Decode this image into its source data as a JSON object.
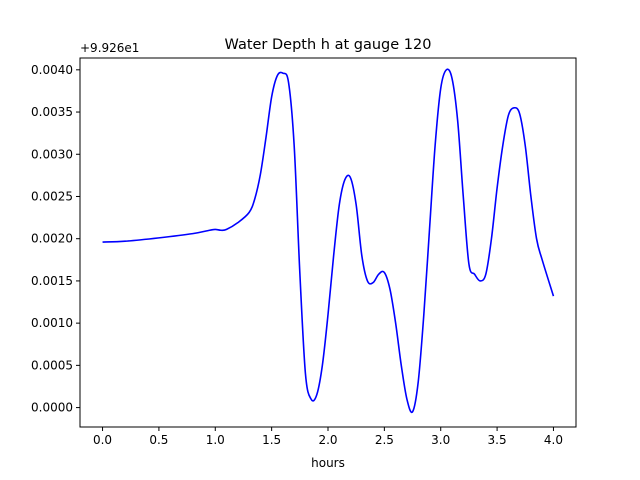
{
  "chart_data": {
    "type": "line",
    "title": "Water Depth h at gauge 120",
    "xlabel": "hours",
    "ylabel": "",
    "y_offset_label": "+9.926e1",
    "xlim": [
      -0.2,
      4.2
    ],
    "ylim": [
      -0.00023,
      0.00414
    ],
    "x_ticks": [
      0.0,
      0.5,
      1.0,
      1.5,
      2.0,
      2.5,
      3.0,
      3.5,
      4.0
    ],
    "x_tick_labels": [
      "0.0",
      "0.5",
      "1.0",
      "1.5",
      "2.0",
      "2.5",
      "3.0",
      "3.5",
      "4.0"
    ],
    "y_ticks": [
      0.0,
      0.0005,
      0.001,
      0.0015,
      0.002,
      0.0025,
      0.003,
      0.0035,
      0.004
    ],
    "y_tick_labels": [
      "0.0000",
      "0.0005",
      "0.0010",
      "0.0015",
      "0.0020",
      "0.0025",
      "0.0030",
      "0.0035",
      "0.0040"
    ],
    "grid": false,
    "series": [
      {
        "color": "#0000ff",
        "x": [
          0.0,
          0.2,
          0.5,
          0.8,
          0.95,
          1.0,
          1.05,
          1.1,
          1.2,
          1.3,
          1.35,
          1.4,
          1.45,
          1.5,
          1.55,
          1.6,
          1.65,
          1.7,
          1.75,
          1.8,
          1.85,
          1.9,
          1.95,
          2.0,
          2.05,
          2.1,
          2.15,
          2.2,
          2.25,
          2.3,
          2.35,
          2.4,
          2.45,
          2.5,
          2.55,
          2.6,
          2.65,
          2.7,
          2.75,
          2.8,
          2.85,
          2.9,
          2.95,
          3.0,
          3.05,
          3.1,
          3.15,
          3.2,
          3.25,
          3.3,
          3.35,
          3.4,
          3.45,
          3.5,
          3.55,
          3.6,
          3.65,
          3.7,
          3.75,
          3.8,
          3.85,
          3.9,
          4.0
        ],
        "y": [
          0.00196,
          0.00197,
          0.00201,
          0.00206,
          0.0021,
          0.00211,
          0.0021,
          0.00211,
          0.00219,
          0.00231,
          0.00247,
          0.00276,
          0.0032,
          0.00368,
          0.00393,
          0.00396,
          0.00385,
          0.0031,
          0.0016,
          0.0004,
          0.0001,
          0.00015,
          0.0005,
          0.0011,
          0.0018,
          0.0024,
          0.0027,
          0.00272,
          0.0024,
          0.0018,
          0.0015,
          0.00148,
          0.00158,
          0.0016,
          0.0014,
          0.001,
          0.0005,
          0.0001,
          -5e-05,
          0.0003,
          0.0011,
          0.0021,
          0.0031,
          0.00378,
          0.004,
          0.0039,
          0.0034,
          0.0025,
          0.0017,
          0.00158,
          0.0015,
          0.00158,
          0.002,
          0.0026,
          0.0031,
          0.00346,
          0.00355,
          0.00348,
          0.0031,
          0.0025,
          0.002,
          0.00175,
          0.00132
        ]
      }
    ]
  }
}
